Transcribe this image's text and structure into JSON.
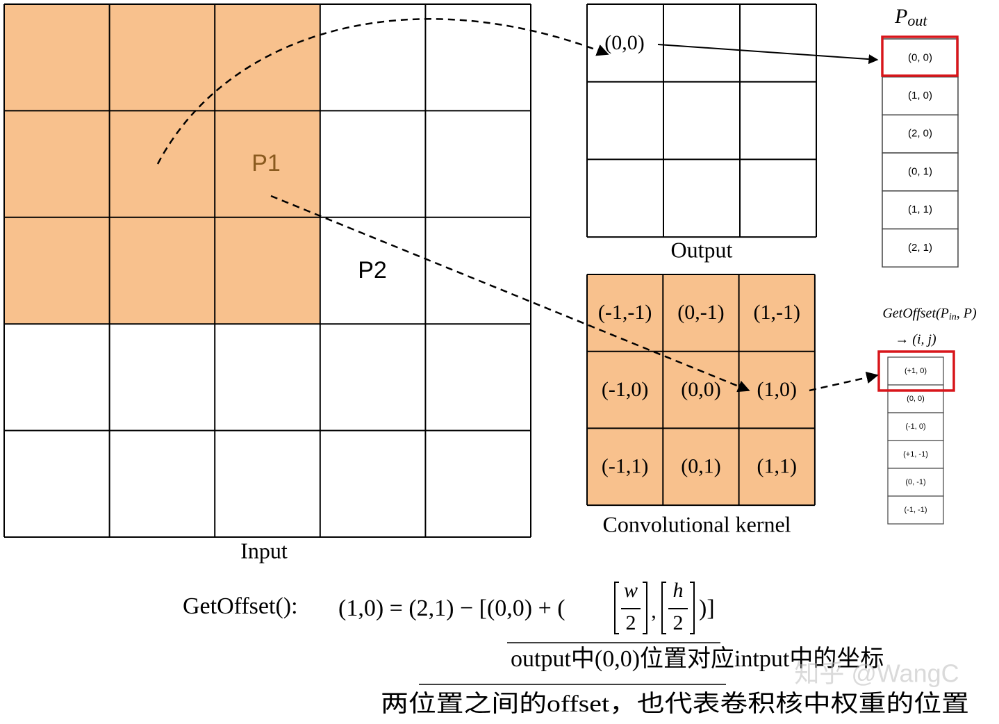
{
  "input": {
    "caption": "Input",
    "labels": [
      "P1",
      "P2"
    ]
  },
  "output": {
    "caption": "Output",
    "cells": [
      "(0,0)"
    ]
  },
  "kernel": {
    "caption": "Convolutional kernel",
    "cells": [
      [
        "(-1,-1)",
        "(0,-1)",
        "(1,-1)"
      ],
      [
        "(-1,0)",
        "(0,0)",
        "(1,0)"
      ],
      [
        "(-1,1)",
        "(0,1)",
        "(1,1)"
      ]
    ]
  },
  "p_out": {
    "title": "P",
    "title_sub": "out",
    "items": [
      "(0, 0)",
      "(1, 0)",
      "(2, 0)",
      "(0, 1)",
      "(1, 1)",
      "(2, 1)"
    ]
  },
  "offset_list": {
    "title_prefix": "GetOffset(P",
    "title_sub": "in",
    "title_suffix": ", P)",
    "title_line2": "→ (i, j)",
    "items": [
      "(+1, 0)",
      "(0, 0)",
      "(-1, 0)",
      "(+1, -1)",
      "(0, -1)",
      "(-1, -1)"
    ]
  },
  "formula": {
    "name": "GetOffset():",
    "lhs": "(1,0) = (2,1) − [(0,0) + (",
    "w": "w",
    "w_den": "2",
    "comma": ",",
    "h": "h",
    "h_den": "2",
    "close": ")]"
  },
  "annotations": [
    "output中(0,0)位置对应intput中的坐标",
    "两位置之间的offset，也代表卷积核中权重的位置"
  ],
  "watermark": "知乎 @WangC"
}
